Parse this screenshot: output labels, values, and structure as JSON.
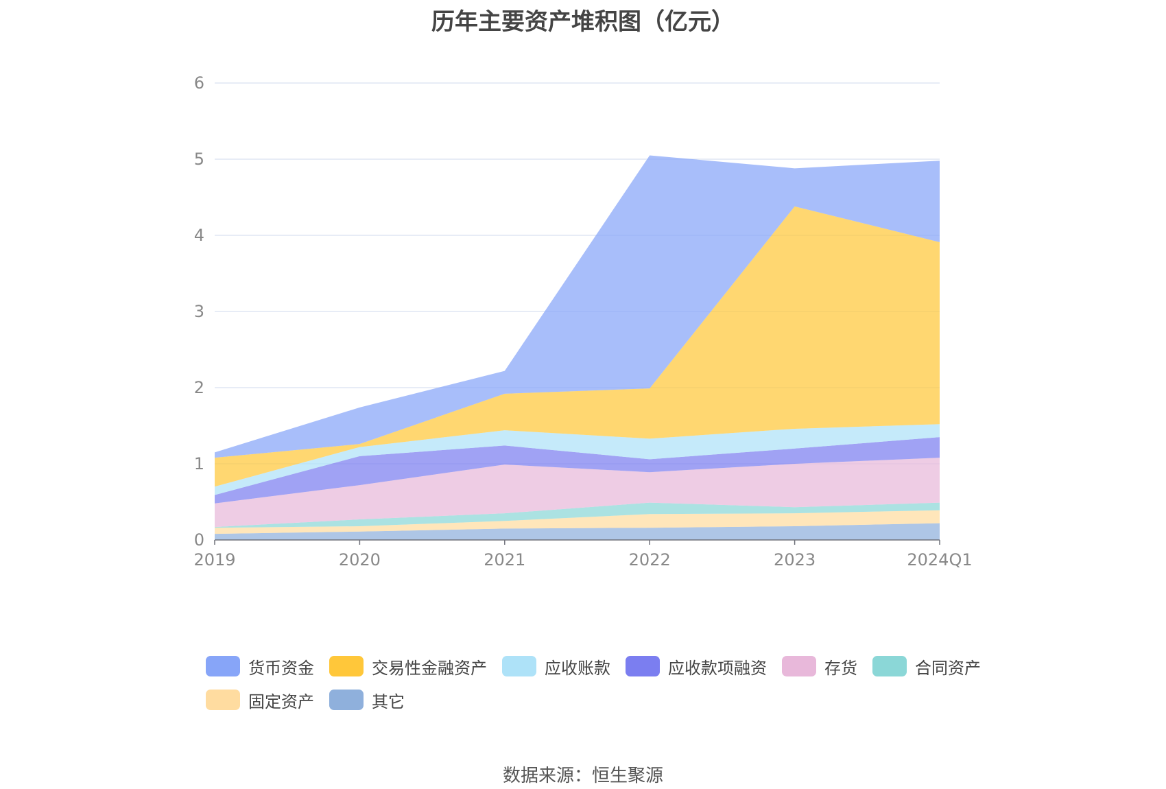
{
  "chart_data": {
    "type": "area",
    "stacked": true,
    "title": "历年主要资产堆积图（亿元）",
    "categories": [
      "2019",
      "2020",
      "2021",
      "2022",
      "2023",
      "2024Q1"
    ],
    "ylim": [
      0,
      6
    ],
    "yticks": [
      "0",
      "1",
      "2",
      "3",
      "4",
      "5",
      "6"
    ],
    "grid": true,
    "legend_position": "bottom",
    "series": [
      {
        "name": "其它",
        "color": "#8fb0dc",
        "values": [
          0.08,
          0.11,
          0.15,
          0.16,
          0.18,
          0.22
        ]
      },
      {
        "name": "固定资产",
        "color": "#ffdca0",
        "values": [
          0.08,
          0.07,
          0.1,
          0.18,
          0.17,
          0.17
        ]
      },
      {
        "name": "合同资产",
        "color": "#8bd7d7",
        "values": [
          0.01,
          0.09,
          0.1,
          0.15,
          0.08,
          0.1
        ]
      },
      {
        "name": "存货",
        "color": "#e8b8da",
        "values": [
          0.31,
          0.45,
          0.64,
          0.4,
          0.57,
          0.59
        ]
      },
      {
        "name": "应收款项融资",
        "color": "#7b7ef0",
        "values": [
          0.11,
          0.38,
          0.25,
          0.17,
          0.2,
          0.27
        ]
      },
      {
        "name": "应收账款",
        "color": "#aee2f8",
        "values": [
          0.11,
          0.12,
          0.2,
          0.27,
          0.26,
          0.17
        ]
      },
      {
        "name": "交易性金融资产",
        "color": "#ffc73a",
        "values": [
          0.38,
          0.04,
          0.48,
          0.66,
          2.92,
          2.39
        ]
      },
      {
        "name": "货币资金",
        "color": "#87a5f8",
        "values": [
          0.07,
          0.48,
          0.3,
          3.06,
          0.5,
          1.07
        ]
      }
    ]
  },
  "legend": {
    "items": [
      {
        "label": "货币资金",
        "color": "#87a5f8"
      },
      {
        "label": "交易性金融资产",
        "color": "#ffc73a"
      },
      {
        "label": "应收账款",
        "color": "#aee2f8"
      },
      {
        "label": "应收款项融资",
        "color": "#7b7ef0"
      },
      {
        "label": "存货",
        "color": "#e8b8da"
      },
      {
        "label": "合同资产",
        "color": "#8bd7d7"
      },
      {
        "label": "固定资产",
        "color": "#ffdca0"
      },
      {
        "label": "其它",
        "color": "#8fb0dc"
      }
    ]
  },
  "footer": {
    "source": "数据来源：恒生聚源"
  }
}
